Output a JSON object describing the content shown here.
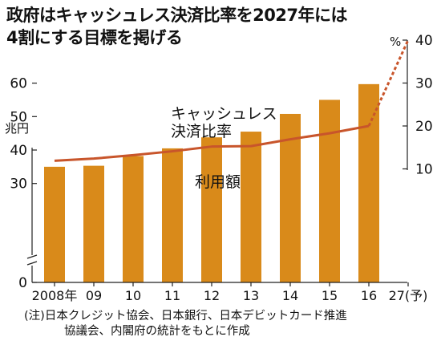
{
  "title_lines": [
    "政府はキャッシュレス決済比率を2027年には",
    "4割にする目標を掲げる"
  ],
  "footnote_lines": [
    "(注)日本クレジット協会、日本銀行、日本デビットカード推進",
    "協議会、内閣府の統計をもとに作成"
  ],
  "chart_data": {
    "type": "bar+line",
    "categories": [
      "2008年",
      "09",
      "10",
      "11",
      "12",
      "13",
      "14",
      "15",
      "16",
      "27(予)"
    ],
    "left_axis": {
      "unit_label": "兆円",
      "ticks": [
        0,
        30,
        40,
        50,
        60
      ],
      "broken": true,
      "range": [
        25,
        65
      ]
    },
    "right_axis": {
      "unit_label": "%",
      "ticks": [
        10,
        20,
        30,
        40
      ],
      "range": [
        7.86,
        43.56
      ]
    },
    "series": [
      {
        "name": "利用額",
        "kind": "bar",
        "axis": "left",
        "color": "#d98a1a",
        "values": [
          35.0,
          35.3,
          38.2,
          40.5,
          43.8,
          45.5,
          50.8,
          55.0,
          59.7,
          null
        ]
      },
      {
        "name": "キャッシュレス決済比率",
        "kind": "line",
        "axis": "right",
        "color": "#c8552b",
        "values": [
          11.9,
          12.4,
          13.2,
          14.1,
          15.2,
          15.3,
          16.9,
          18.3,
          20.0,
          40.0
        ],
        "dashed_from_index": 8
      }
    ],
    "series_labels": {
      "line": [
        "キャッシュレス",
        "決済比率"
      ],
      "bar": "利用額"
    },
    "grid": false
  },
  "colors": {
    "bar": "#d98a1a",
    "line": "#c8552b",
    "text": "#111111",
    "axis": "#222222"
  }
}
